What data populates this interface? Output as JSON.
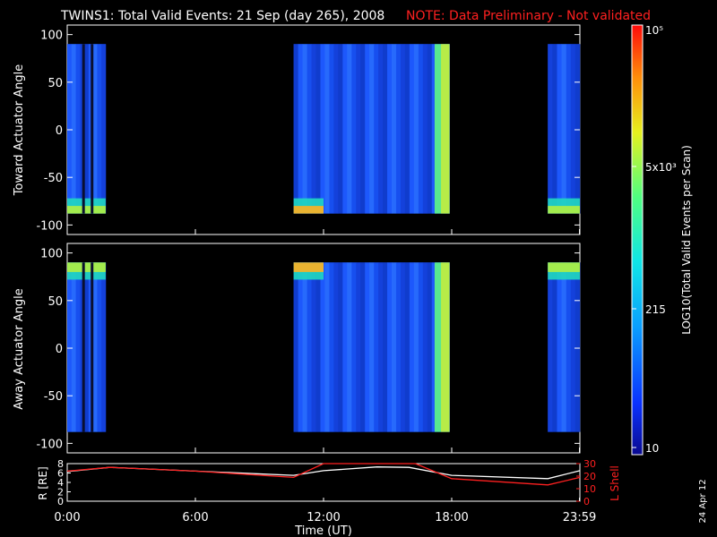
{
  "header": {
    "title": "TWINS1: Total Valid Events: 21 Sep (day 265), 2008",
    "note": "NOTE: Data Preliminary - Not validated"
  },
  "panels": {
    "top_ylabel": "Toward Actuator Angle",
    "bottom_ylabel": "Away Actuator Angle"
  },
  "colorbar": {
    "label": "LOG10(Total Valid Events per Scan)",
    "tick_labels": [
      "10",
      "215",
      "5x10³",
      "10⁵"
    ]
  },
  "orbit": {
    "left_label": "R [RE]",
    "right_label": "L Shell",
    "left_ticks": [
      "0",
      "2",
      "4",
      "6",
      "8"
    ],
    "right_ticks": [
      "0",
      "10",
      "20",
      "30"
    ],
    "line_colors": {
      "R": "#ffffff",
      "L": "#ff2020"
    }
  },
  "xaxis": {
    "label": "Time (UT)",
    "ticks": [
      "0:00",
      "6:00",
      "12:00",
      "18:00",
      "23:59"
    ]
  },
  "footer": {
    "date": "24 Apr 12"
  },
  "chart_data": [
    {
      "type": "heatmap",
      "panel": "toward",
      "ylabel": "Toward Actuator Angle",
      "ylim": [
        -110,
        110
      ],
      "yticks": [
        -100,
        -50,
        0,
        50,
        100
      ],
      "xlim_hours": [
        0,
        24
      ],
      "xticks": [
        "0:00",
        "6:00",
        "12:00",
        "18:00",
        "23:59"
      ],
      "angle_range": [
        -88,
        90
      ],
      "data_blocks_hours": [
        [
          0,
          1.8
        ],
        [
          10.6,
          17.9
        ],
        [
          22.5,
          24
        ]
      ],
      "notes": "Blue (~100-300 events) across most angles; yellow/orange enhancement near -80 deg around 10.6-12 UT and 23-24 UT; green-yellow column around 17.3-17.9 UT"
    },
    {
      "type": "heatmap",
      "panel": "away",
      "ylabel": "Away Actuator Angle",
      "ylim": [
        -110,
        110
      ],
      "yticks": [
        -100,
        -50,
        0,
        50,
        100
      ],
      "xlim_hours": [
        0,
        24
      ],
      "xticks": [
        "0:00",
        "6:00",
        "12:00",
        "18:00",
        "23:59"
      ],
      "angle_range": [
        -88,
        90
      ],
      "data_blocks_hours": [
        [
          0,
          1.8
        ],
        [
          10.6,
          17.9
        ],
        [
          22.5,
          24
        ]
      ],
      "notes": "Yellow/orange enhancement near +85 deg at 10.6-12 UT and 23-24 UT; green-yellow column around 17.3-17.9 UT"
    },
    {
      "type": "line",
      "panel": "orbit",
      "xlim_hours": [
        0,
        24
      ],
      "series": [
        {
          "name": "R [RE]",
          "axis": "left",
          "ylim": [
            0,
            8
          ],
          "x": [
            0,
            2,
            6,
            10.6,
            12,
            14.5,
            16,
            18,
            22.5,
            24
          ],
          "y": [
            6.3,
            7.2,
            6.4,
            5.5,
            6.5,
            7.3,
            7.2,
            5.5,
            4.8,
            6.5
          ]
        },
        {
          "name": "L Shell",
          "axis": "right",
          "ylim": [
            0,
            30
          ],
          "x": [
            0,
            2,
            6,
            10.6,
            12,
            12.1,
            16.1,
            16.3,
            18,
            22.5,
            24
          ],
          "y": [
            24,
            27,
            24,
            19,
            35,
            35,
            35,
            30,
            18,
            13,
            19
          ]
        }
      ]
    }
  ]
}
